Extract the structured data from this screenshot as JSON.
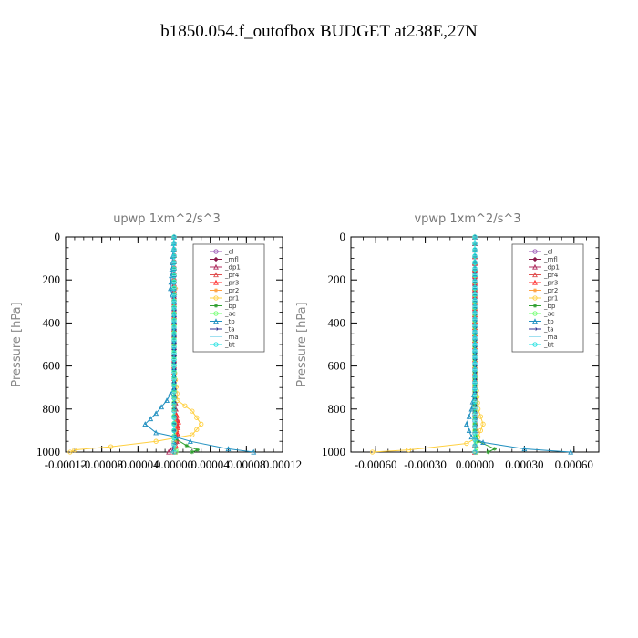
{
  "figure": {
    "title": "b1850.054.f_outofbox  BUDGET at238E,27N"
  },
  "chart_data": [
    {
      "type": "line",
      "title": "upwp   1xm^2/s^3",
      "xlabel": "",
      "ylabel": "Pressure [hPa]",
      "xlim": [
        -0.00012,
        0.00012
      ],
      "ylim": [
        1000,
        0
      ],
      "xticks": [
        -0.00012,
        -8e-05,
        -4e-05,
        0.0,
        4e-05,
        8e-05,
        0.00012
      ],
      "xtick_labels": [
        "-0.00012",
        "-0.00008",
        "-0.00004",
        "0.00000",
        "0.00004",
        "0.00008",
        "0.00012"
      ],
      "yticks": [
        0,
        200,
        400,
        600,
        800,
        1000
      ],
      "ytick_labels": [
        "0",
        "200",
        "400",
        "600",
        "800",
        "1000"
      ],
      "legend_position": "top-right",
      "series": [
        {
          "name": "_cl",
          "color": "#9b59b6",
          "marker": "circle",
          "points": [
            [
              0,
              0
            ],
            [
              0,
              200
            ],
            [
              0,
              400
            ],
            [
              0,
              600
            ],
            [
              0,
              800
            ],
            [
              0,
              900
            ],
            [
              0,
              960
            ],
            [
              0,
              1000
            ]
          ]
        },
        {
          "name": "_mfl",
          "color": "#8b1a4a",
          "marker": "diamond",
          "points": [
            [
              0,
              0
            ],
            [
              0,
              200
            ],
            [
              0,
              400
            ],
            [
              0,
              600
            ],
            [
              0,
              800
            ],
            [
              2e-06,
              900
            ],
            [
              2e-06,
              960
            ],
            [
              1e-06,
              1000
            ]
          ]
        },
        {
          "name": "_dp1",
          "color": "#b03060",
          "marker": "triangle",
          "points": [
            [
              0,
              0
            ],
            [
              0,
              200
            ],
            [
              0,
              400
            ],
            [
              0,
              600
            ],
            [
              2e-06,
              800
            ],
            [
              4e-06,
              880
            ],
            [
              3e-06,
              950
            ],
            [
              -4e-06,
              990
            ],
            [
              -6e-06,
              1000
            ]
          ]
        },
        {
          "name": "_pr4",
          "color": "#e05050",
          "marker": "triangle",
          "points": [
            [
              0,
              0
            ],
            [
              0,
              200
            ],
            [
              0,
              400
            ],
            [
              0,
              600
            ],
            [
              0,
              800
            ],
            [
              3e-06,
              870
            ],
            [
              2e-06,
              950
            ],
            [
              0,
              1000
            ]
          ]
        },
        {
          "name": "_pr3",
          "color": "#ff3030",
          "marker": "triangle",
          "points": [
            [
              0,
              0
            ],
            [
              0,
              200
            ],
            [
              0,
              400
            ],
            [
              0,
              600
            ],
            [
              1e-06,
              800
            ],
            [
              5e-06,
              860
            ],
            [
              3e-06,
              940
            ],
            [
              1e-06,
              1000
            ]
          ]
        },
        {
          "name": "_pr2",
          "color": "#ffa040",
          "marker": "star",
          "points": [
            [
              0,
              0
            ],
            [
              0,
              200
            ],
            [
              2e-06,
              240
            ],
            [
              0,
              300
            ],
            [
              0,
              600
            ],
            [
              0,
              800
            ],
            [
              2e-06,
              900
            ],
            [
              0,
              1000
            ]
          ]
        },
        {
          "name": "_pr1",
          "color": "#ffd040",
          "marker": "circle",
          "points": [
            [
              0,
              0
            ],
            [
              0,
              600
            ],
            [
              4e-06,
              760
            ],
            [
              2e-05,
              810
            ],
            [
              3e-05,
              870
            ],
            [
              2e-05,
              920
            ],
            [
              -2e-05,
              950
            ],
            [
              -7e-05,
              975
            ],
            [
              -0.00011,
              990
            ],
            [
              -0.000115,
              1000
            ]
          ]
        },
        {
          "name": "_bp",
          "color": "#30a030",
          "marker": "star",
          "points": [
            [
              0,
              0
            ],
            [
              0,
              800
            ],
            [
              0,
              900
            ],
            [
              2e-06,
              940
            ],
            [
              1.4e-05,
              970
            ],
            [
              2.6e-05,
              990
            ],
            [
              2e-05,
              1000
            ]
          ]
        },
        {
          "name": "_ac",
          "color": "#70ff70",
          "marker": "circle",
          "points": [
            [
              0,
              0
            ],
            [
              0,
              800
            ],
            [
              0,
              900
            ],
            [
              0,
              950
            ],
            [
              2e-06,
              990
            ],
            [
              2e-06,
              1000
            ]
          ]
        },
        {
          "name": "_tp",
          "color": "#2090c0",
          "marker": "triangle",
          "points": [
            [
              0,
              0
            ],
            [
              -4e-06,
              240
            ],
            [
              0,
              300
            ],
            [
              0,
              700
            ],
            [
              -8e-06,
              760
            ],
            [
              -2e-05,
              820
            ],
            [
              -3.2e-05,
              870
            ],
            [
              -2e-05,
              910
            ],
            [
              2e-06,
              930
            ],
            [
              1.8e-05,
              950
            ],
            [
              6e-05,
              985
            ],
            [
              8.8e-05,
              1000
            ]
          ]
        },
        {
          "name": "_ta",
          "color": "#303090",
          "marker": "arrow",
          "points": [
            [
              0,
              0
            ],
            [
              0,
              400
            ],
            [
              0,
              800
            ],
            [
              0,
              900
            ],
            [
              0,
              960
            ],
            [
              -2e-06,
              1000
            ]
          ]
        },
        {
          "name": "_ma",
          "color": "#a0e0f0",
          "marker": "dash",
          "points": [
            [
              0,
              0
            ],
            [
              0,
              600
            ],
            [
              0,
              1000
            ]
          ]
        },
        {
          "name": "_bt",
          "color": "#20e0e0",
          "marker": "circle",
          "points": [
            [
              0,
              0
            ],
            [
              0,
              600
            ],
            [
              0,
              900
            ],
            [
              0,
              1000
            ]
          ]
        }
      ]
    },
    {
      "type": "line",
      "title": "vpwp   1xm^2/s^3",
      "xlabel": "",
      "ylabel": "Pressure [hPa]",
      "xlim": [
        -0.00075,
        0.00075
      ],
      "ylim": [
        1000,
        0
      ],
      "xticks": [
        -0.0006,
        -0.0003,
        0.0,
        0.0003,
        0.0006
      ],
      "xtick_labels": [
        "-0.00060",
        "-0.00030",
        "0.00000",
        "0.00030",
        "0.00060"
      ],
      "yticks": [
        0,
        200,
        400,
        600,
        800,
        1000
      ],
      "ytick_labels": [
        "0",
        "200",
        "400",
        "600",
        "800",
        "1000"
      ],
      "legend_position": "top-right",
      "series": [
        {
          "name": "_cl",
          "color": "#9b59b6",
          "marker": "circle",
          "points": [
            [
              0,
              0
            ],
            [
              0,
              400
            ],
            [
              0,
              800
            ],
            [
              0,
              1000
            ]
          ]
        },
        {
          "name": "_mfl",
          "color": "#8b1a4a",
          "marker": "diamond",
          "points": [
            [
              0,
              0
            ],
            [
              0,
              200
            ],
            [
              0,
              400
            ],
            [
              0,
              600
            ],
            [
              0,
              800
            ],
            [
              0,
              900
            ],
            [
              0,
              1000
            ]
          ]
        },
        {
          "name": "_dp1",
          "color": "#b03060",
          "marker": "triangle",
          "points": [
            [
              0,
              0
            ],
            [
              0,
              400
            ],
            [
              0,
              800
            ],
            [
              1e-05,
              900
            ],
            [
              0,
              1000
            ]
          ]
        },
        {
          "name": "_pr4",
          "color": "#e05050",
          "marker": "triangle",
          "points": [
            [
              0,
              0
            ],
            [
              0,
              600
            ],
            [
              0,
              900
            ],
            [
              0,
              1000
            ]
          ]
        },
        {
          "name": "_pr3",
          "color": "#ff3030",
          "marker": "triangle",
          "points": [
            [
              0,
              0
            ],
            [
              0,
              600
            ],
            [
              0,
              900
            ],
            [
              0,
              1000
            ]
          ]
        },
        {
          "name": "_pr2",
          "color": "#ffa040",
          "marker": "star",
          "points": [
            [
              0,
              0
            ],
            [
              0,
              600
            ],
            [
              0,
              1000
            ]
          ]
        },
        {
          "name": "_pr1",
          "color": "#ffd040",
          "marker": "circle",
          "points": [
            [
              0,
              0
            ],
            [
              0,
              600
            ],
            [
              2e-05,
              800
            ],
            [
              5e-05,
              870
            ],
            [
              2e-05,
              930
            ],
            [
              -5e-05,
              960
            ],
            [
              -0.0004,
              990
            ],
            [
              -0.00062,
              1000
            ]
          ]
        },
        {
          "name": "_bp",
          "color": "#30a030",
          "marker": "star",
          "points": [
            [
              0,
              0
            ],
            [
              0,
              900
            ],
            [
              2e-05,
              950
            ],
            [
              0.00012,
              985
            ],
            [
              8e-05,
              1000
            ]
          ]
        },
        {
          "name": "_ac",
          "color": "#70ff70",
          "marker": "circle",
          "points": [
            [
              0,
              0
            ],
            [
              0,
              900
            ],
            [
              1e-05,
              980
            ],
            [
              1e-05,
              1000
            ]
          ]
        },
        {
          "name": "_tp",
          "color": "#2090c0",
          "marker": "triangle",
          "points": [
            [
              0,
              0
            ],
            [
              0,
              700
            ],
            [
              -2e-05,
              800
            ],
            [
              -5e-05,
              870
            ],
            [
              -2e-05,
              930
            ],
            [
              5e-05,
              955
            ],
            [
              0.0003,
              985
            ],
            [
              0.00058,
              1000
            ]
          ]
        },
        {
          "name": "_ta",
          "color": "#303090",
          "marker": "arrow",
          "points": [
            [
              0,
              0
            ],
            [
              0,
              600
            ],
            [
              0,
              1000
            ]
          ]
        },
        {
          "name": "_ma",
          "color": "#a0e0f0",
          "marker": "dash",
          "points": [
            [
              0,
              0
            ],
            [
              0,
              1000
            ]
          ]
        },
        {
          "name": "_bt",
          "color": "#20e0e0",
          "marker": "circle",
          "points": [
            [
              0,
              0
            ],
            [
              0,
              1000
            ]
          ]
        }
      ]
    }
  ]
}
